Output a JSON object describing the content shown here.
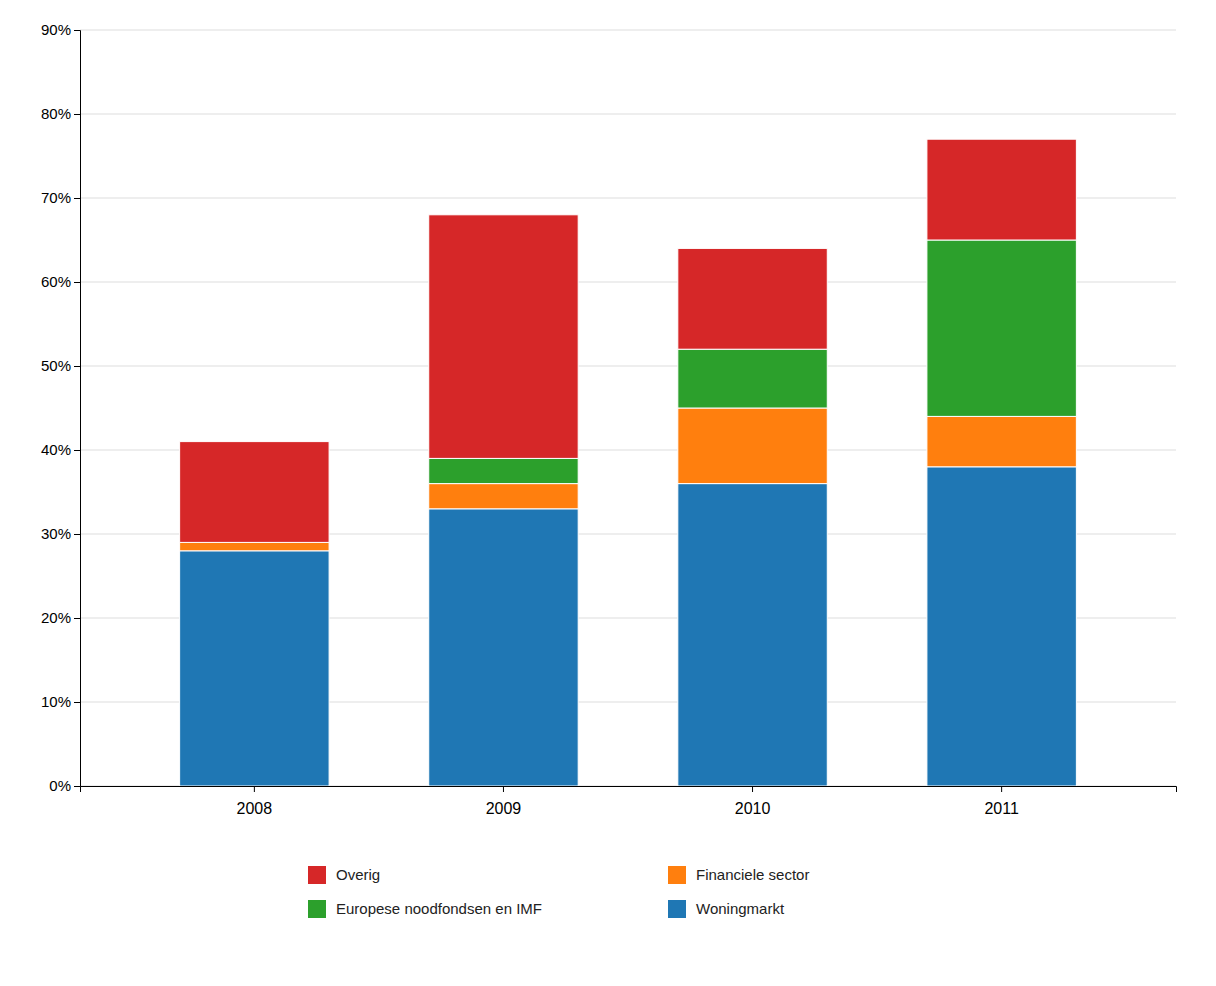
{
  "chart_data": {
    "type": "bar",
    "stacked": true,
    "categories": [
      "2008",
      "2009",
      "2010",
      "2011"
    ],
    "series": [
      {
        "name": "Woningmarkt",
        "values": [
          28,
          33,
          36,
          38
        ]
      },
      {
        "name": "Financiele sector",
        "values": [
          1,
          3,
          9,
          6
        ]
      },
      {
        "name": "Europese noodfondsen en IMF",
        "values": [
          0,
          3,
          7,
          21
        ]
      },
      {
        "name": "Overig",
        "values": [
          12,
          29,
          12,
          12
        ]
      }
    ],
    "ylim": [
      0,
      90
    ],
    "yticks": [
      {
        "value": 0,
        "label": "0%"
      },
      {
        "value": 10,
        "label": "10%"
      },
      {
        "value": 20,
        "label": "20%"
      },
      {
        "value": 30,
        "label": "30%"
      },
      {
        "value": 40,
        "label": "40%"
      },
      {
        "value": 50,
        "label": "50%"
      },
      {
        "value": 60,
        "label": "60%"
      },
      {
        "value": 70,
        "label": "70%"
      },
      {
        "value": 80,
        "label": "80%"
      },
      {
        "value": 90,
        "label": "90%"
      }
    ],
    "grid": true,
    "legend": "bottom"
  }
}
